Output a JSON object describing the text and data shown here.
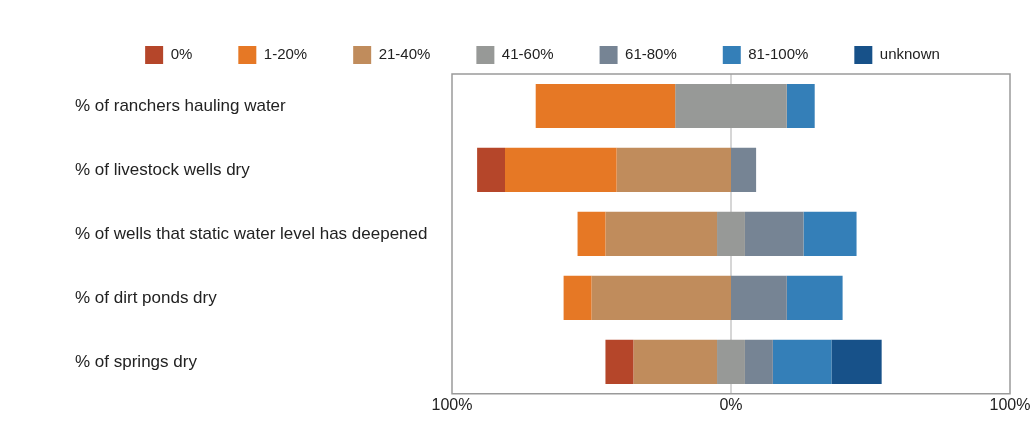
{
  "chart_data": {
    "type": "bar",
    "orientation": "horizontal",
    "categories": [
      "% of ranchers hauling water",
      "% of livestock wells dry",
      "% of wells that static water level has deepened",
      "% of dirt ponds dry",
      "% of springs dry"
    ],
    "series": [
      {
        "name": "0%",
        "color": "#b5462a",
        "values": [
          null,
          10,
          null,
          null,
          10
        ],
        "base": [
          null,
          -91,
          null,
          null,
          -45
        ]
      },
      {
        "name": "1-20%",
        "color": "#e67825",
        "values": [
          50,
          40,
          10,
          10,
          null
        ],
        "base": [
          -70,
          -81,
          -55,
          -60,
          null
        ]
      },
      {
        "name": "21-40%",
        "color": "#c08c5c",
        "values": [
          null,
          41,
          40,
          50,
          30
        ],
        "base": [
          null,
          -41,
          -45,
          -50,
          -35
        ]
      },
      {
        "name": "41-60%",
        "color": "#979997",
        "values": [
          40,
          null,
          10,
          null,
          10
        ],
        "base": [
          -20,
          null,
          -5,
          null,
          -5
        ]
      },
      {
        "name": "61-80%",
        "color": "#768494",
        "values": [
          null,
          9,
          21,
          20,
          10
        ],
        "base": [
          null,
          0,
          5,
          0,
          5
        ]
      },
      {
        "name": "81-100%",
        "color": "#347fb8",
        "values": [
          10,
          null,
          19,
          20,
          21
        ],
        "base": [
          20,
          null,
          26,
          20,
          15
        ]
      },
      {
        "name": "unknown",
        "color": "#175189",
        "values": [
          null,
          null,
          null,
          null,
          18
        ],
        "base": [
          null,
          null,
          null,
          null,
          36
        ]
      }
    ],
    "xlim": [
      -100,
      100
    ],
    "xticks": [
      {
        "value": -100,
        "label": "100%"
      },
      {
        "value": 0,
        "label": "0%"
      },
      {
        "value": 100,
        "label": "100%"
      }
    ],
    "ref_lines": [
      {
        "axis": "x",
        "value": 0,
        "color": "#c8c8c8"
      }
    ],
    "legend": "top",
    "grid": false
  }
}
